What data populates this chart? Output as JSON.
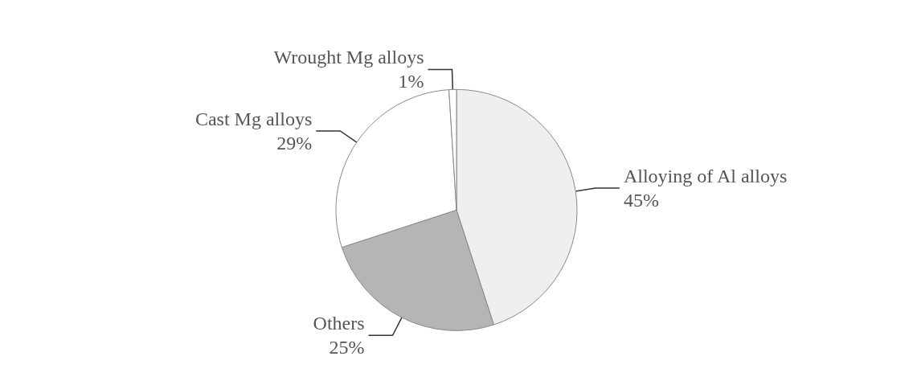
{
  "chart_data": {
    "type": "pie",
    "categories": [
      "Alloying of Al alloys",
      "Others",
      "Cast Mg alloys",
      "Wrought Mg alloys"
    ],
    "values": [
      45,
      25,
      29,
      1
    ],
    "value_labels": [
      "45%",
      "25%",
      "29%",
      "1%"
    ],
    "colors": [
      "#efefef",
      "#b5b5b5",
      "#ffffff",
      "#ffffff"
    ]
  }
}
